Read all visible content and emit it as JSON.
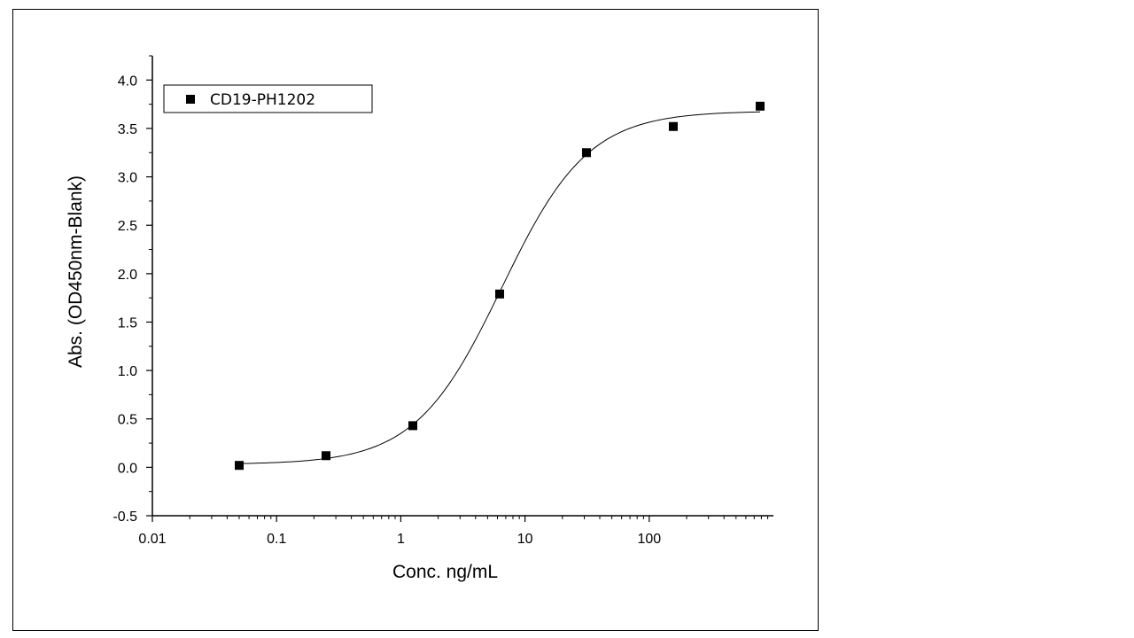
{
  "chart_data": {
    "type": "scatter",
    "xlabel": "Conc. ng/mL",
    "ylabel": "Abs. (OD450nm-Blank)",
    "x_scale": "log",
    "xlim": [
      0.01,
      1000
    ],
    "ylim": [
      -0.5,
      4.25
    ],
    "x_ticks": [
      0.01,
      0.1,
      1,
      10,
      100
    ],
    "x_tick_labels": [
      "0.01",
      "0.1",
      "1",
      "10",
      "100"
    ],
    "y_ticks": [
      -0.5,
      0.0,
      0.5,
      1.0,
      1.5,
      2.0,
      2.5,
      3.0,
      3.5,
      4.0
    ],
    "y_tick_labels": [
      "-0.5",
      "0.0",
      "0.5",
      "1.0",
      "1.5",
      "2.0",
      "2.5",
      "3.0",
      "3.5",
      "4.0"
    ],
    "grid": false,
    "legend_position": "top-left",
    "series": [
      {
        "name": "CD19-PH1202",
        "marker": "square",
        "color": "#000000",
        "x": [
          0.05,
          0.25,
          1.25,
          6.25,
          31.25,
          156.25,
          781.25
        ],
        "y": [
          0.02,
          0.12,
          0.43,
          1.79,
          3.25,
          3.52,
          3.73
        ]
      }
    ],
    "fit_curve": {
      "kind": "4PL",
      "bottom": 0.03,
      "top": 3.68,
      "ec50": 6.5,
      "hill": 1.25,
      "x_range": [
        0.05,
        781.25
      ],
      "color": "#000000"
    }
  }
}
